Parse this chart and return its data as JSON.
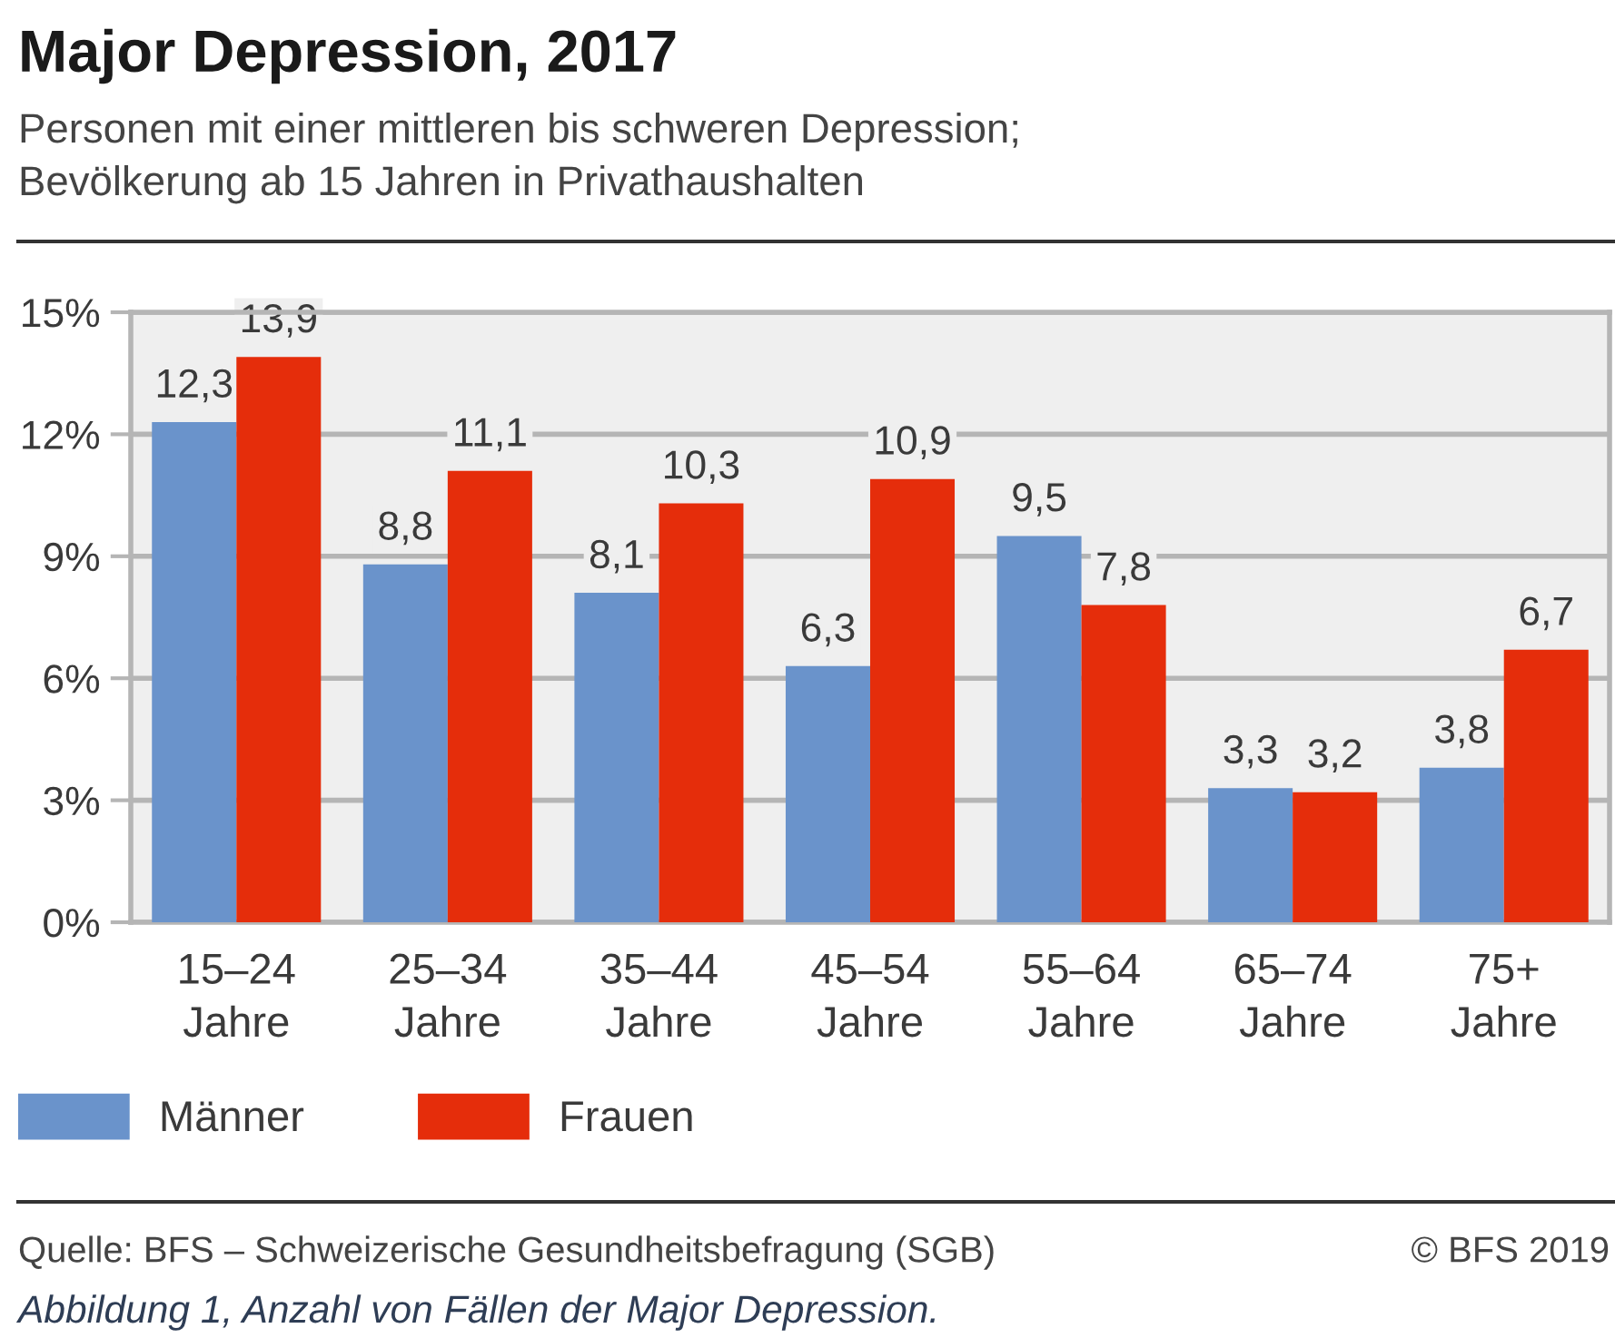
{
  "chart_data": {
    "type": "bar",
    "title": "Major Depression, 2017",
    "subtitle": "Personen mit einer mittleren bis schweren Depression;\nBevölkerung ab 15 Jahren in Privathaushalten",
    "categories": [
      "15–24\nJahre",
      "25–34\nJahre",
      "35–44\nJahre",
      "45–54\nJahre",
      "55–64\nJahre",
      "65–74\nJahre",
      "75+\nJahre"
    ],
    "series": [
      {
        "name": "Männer",
        "color": "#6a93cb",
        "values": [
          12.3,
          8.8,
          8.1,
          6.3,
          9.5,
          3.3,
          3.8
        ],
        "value_labels": [
          "12,3",
          "8,8",
          "8,1",
          "6,3",
          "9,5",
          "3,3",
          "3,8"
        ]
      },
      {
        "name": "Frauen",
        "color": "#e52d0b",
        "values": [
          13.9,
          11.1,
          10.3,
          10.9,
          7.8,
          3.2,
          6.7
        ],
        "value_labels": [
          "13,9",
          "11,1",
          "10,3",
          "10,9",
          "7,8",
          "3,2",
          "6,7"
        ]
      }
    ],
    "ylim": [
      0,
      15
    ],
    "yticks": [
      {
        "value": 0,
        "label": "0%"
      },
      {
        "value": 3,
        "label": "3%"
      },
      {
        "value": 6,
        "label": "6%"
      },
      {
        "value": 9,
        "label": "9%"
      },
      {
        "value": 12,
        "label": "12%"
      },
      {
        "value": 15,
        "label": "15%"
      }
    ],
    "grid": "y",
    "legend": "bottom left",
    "annotations": [
      "Quelle: BFS – Schweizerische Gesundheitsbefragung (SGB)",
      "© BFS 2019",
      "Abbildung 1, Anzahl von Fällen der Major Depression."
    ]
  }
}
